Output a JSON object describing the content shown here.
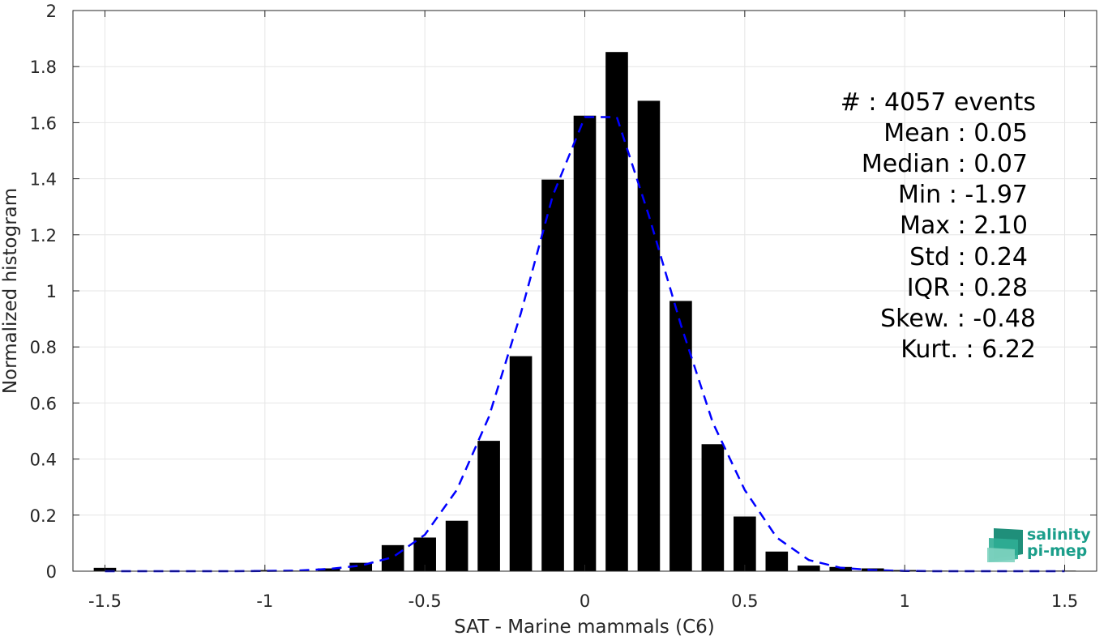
{
  "chart_data": {
    "type": "bar",
    "xlabel": "SAT - Marine mammals (C6)",
    "ylabel": "Normalized histogram",
    "xlim": [
      -1.6,
      1.6
    ],
    "ylim": [
      0,
      2
    ],
    "xticks": [
      -1.5,
      -1,
      -0.5,
      0,
      0.5,
      1,
      1.5
    ],
    "xtick_labels": [
      "-1.5",
      "-1",
      "-0.5",
      "0",
      "0.5",
      "1",
      "1.5"
    ],
    "yticks": [
      0,
      0.2,
      0.4,
      0.6,
      0.8,
      1,
      1.2,
      1.4,
      1.6,
      1.8,
      2
    ],
    "ytick_labels": [
      "0",
      "0.2",
      "0.4",
      "0.6",
      "0.8",
      "1",
      "1.2",
      "1.4",
      "1.6",
      "1.8",
      "2"
    ],
    "grid": true,
    "bar_width": 0.07,
    "series": [
      {
        "type": "bar",
        "color": "#000000",
        "x": [
          -1.5,
          -1.0,
          -0.9,
          -0.8,
          -0.7,
          -0.6,
          -0.5,
          -0.4,
          -0.3,
          -0.2,
          -0.1,
          0.0,
          0.1,
          0.2,
          0.3,
          0.4,
          0.5,
          0.6,
          0.7,
          0.8,
          0.9,
          1.0,
          1.1,
          1.2,
          1.5
        ],
        "values": [
          0.012,
          0.004,
          0.002,
          0.01,
          0.03,
          0.093,
          0.12,
          0.18,
          0.465,
          0.767,
          1.397,
          1.625,
          1.852,
          1.678,
          0.964,
          0.453,
          0.195,
          0.07,
          0.02,
          0.015,
          0.01,
          0.004,
          0.002,
          0.001,
          0.002
        ]
      },
      {
        "type": "line",
        "style": "dashed",
        "color": "#0000ff",
        "x": [
          -1.5,
          -1.4,
          -1.3,
          -1.2,
          -1.1,
          -1.0,
          -0.9,
          -0.8,
          -0.7,
          -0.6,
          -0.5,
          -0.4,
          -0.3,
          -0.2,
          -0.1,
          0.0,
          0.1,
          0.2,
          0.3,
          0.4,
          0.5,
          0.6,
          0.7,
          0.8,
          0.9,
          1.0,
          1.1,
          1.2,
          1.3,
          1.4,
          1.5
        ],
        "values": [
          0,
          0,
          0,
          0,
          0,
          0.001,
          0.002,
          0.008,
          0.02,
          0.05,
          0.13,
          0.29,
          0.55,
          0.92,
          1.34,
          1.62,
          1.62,
          1.27,
          0.88,
          0.53,
          0.29,
          0.12,
          0.04,
          0.012,
          0.004,
          0.001,
          0,
          0,
          0,
          0,
          0
        ]
      }
    ],
    "stats": [
      {
        "label": "#  : 4057 events"
      },
      {
        "label": "Mean : 0.05"
      },
      {
        "label": "Median : 0.07"
      },
      {
        "label": "Min : -1.97"
      },
      {
        "label": "Max : 2.10"
      },
      {
        "label": "Std : 0.24"
      },
      {
        "label": "IQR : 0.28"
      },
      {
        "label": "Skew. : -0.48"
      },
      {
        "label": "Kurt. : 6.22"
      }
    ]
  },
  "logo": {
    "line1": "salinity",
    "line2": "pi-mep"
  }
}
